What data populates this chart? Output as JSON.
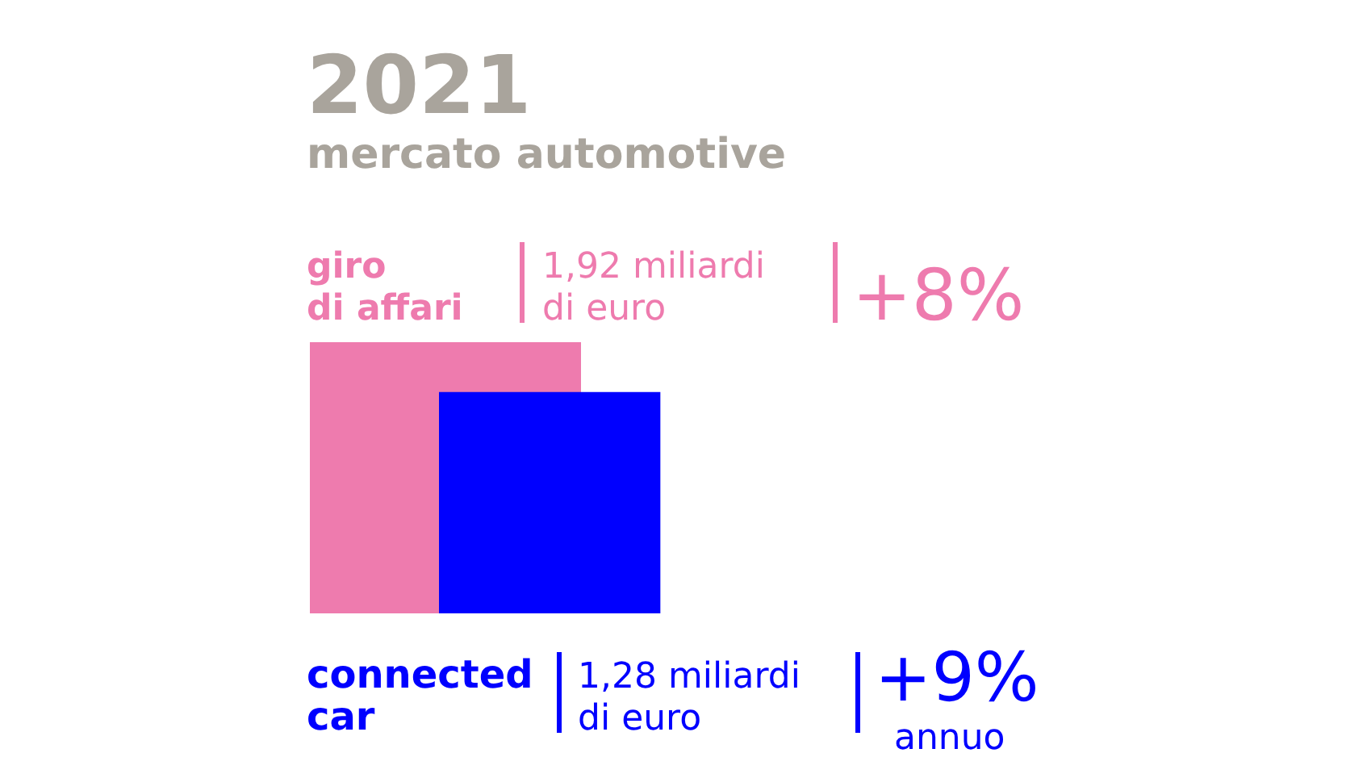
{
  "chart_data": {
    "type": "other",
    "title": "2021",
    "subtitle": "mercato automotive",
    "categories": [
      "giro\ndi affari",
      "connected\ncar"
    ],
    "values": [
      1.92,
      1.28
    ],
    "colors": [
      "#ee7bae",
      "#0000ff"
    ],
    "value_labels": [
      "1,92 miliardi\ndi euro",
      "1,28 miliardi\ndi euro"
    ],
    "annotations": [
      "+8%",
      "+9%\nannuo"
    ]
  }
}
